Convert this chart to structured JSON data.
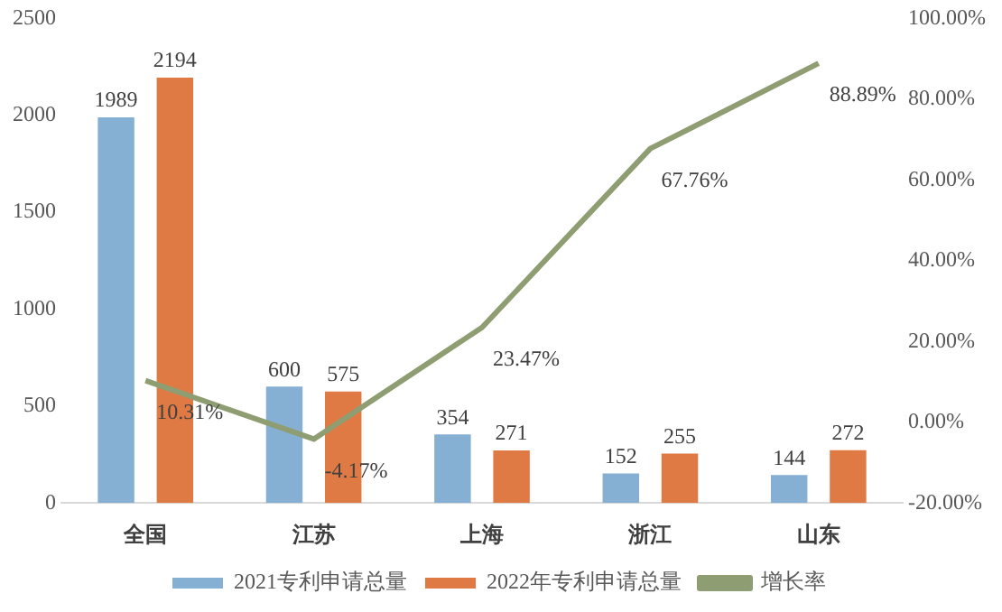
{
  "chart_data": {
    "type": "bar",
    "categories": [
      "全国",
      "江苏",
      "上海",
      "浙江",
      "山东"
    ],
    "series": [
      {
        "name": "2021专利申请总量",
        "color": "#86afd4",
        "values": [
          1989,
          600,
          354,
          152,
          144
        ],
        "value_labels": [
          "1989",
          "600",
          "354",
          "152",
          "144"
        ]
      },
      {
        "name": "2022年专利申请总量",
        "color": "#e07a45",
        "values": [
          2194,
          575,
          271,
          255,
          272
        ],
        "value_labels": [
          "2194",
          "575",
          "271",
          "255",
          "272"
        ]
      },
      {
        "name": "增长率",
        "type": "line",
        "axis": "y2",
        "color": "#8f9e72",
        "values": [
          10.31,
          -4.17,
          23.47,
          67.76,
          88.89
        ],
        "value_labels": [
          "10.31%",
          "-4.17%",
          "23.47%",
          "67.76%",
          "88.89%"
        ]
      }
    ],
    "ylim": [
      0,
      2500
    ],
    "yticks": [
      0,
      500,
      1000,
      1500,
      2000,
      2500
    ],
    "y2lim": [
      -20,
      100
    ],
    "y2ticks": [
      {
        "value": -20,
        "label": "-20.00%"
      },
      {
        "value": 0,
        "label": "0.00%"
      },
      {
        "value": 20,
        "label": "20.00%"
      },
      {
        "value": 40,
        "label": "40.00%"
      },
      {
        "value": 60,
        "label": "60.00%"
      },
      {
        "value": 80,
        "label": "80.00%"
      },
      {
        "value": 100,
        "label": "100.00%"
      }
    ],
    "grid": false,
    "legend": "bottom",
    "marker": "none",
    "line_style": "solid"
  }
}
